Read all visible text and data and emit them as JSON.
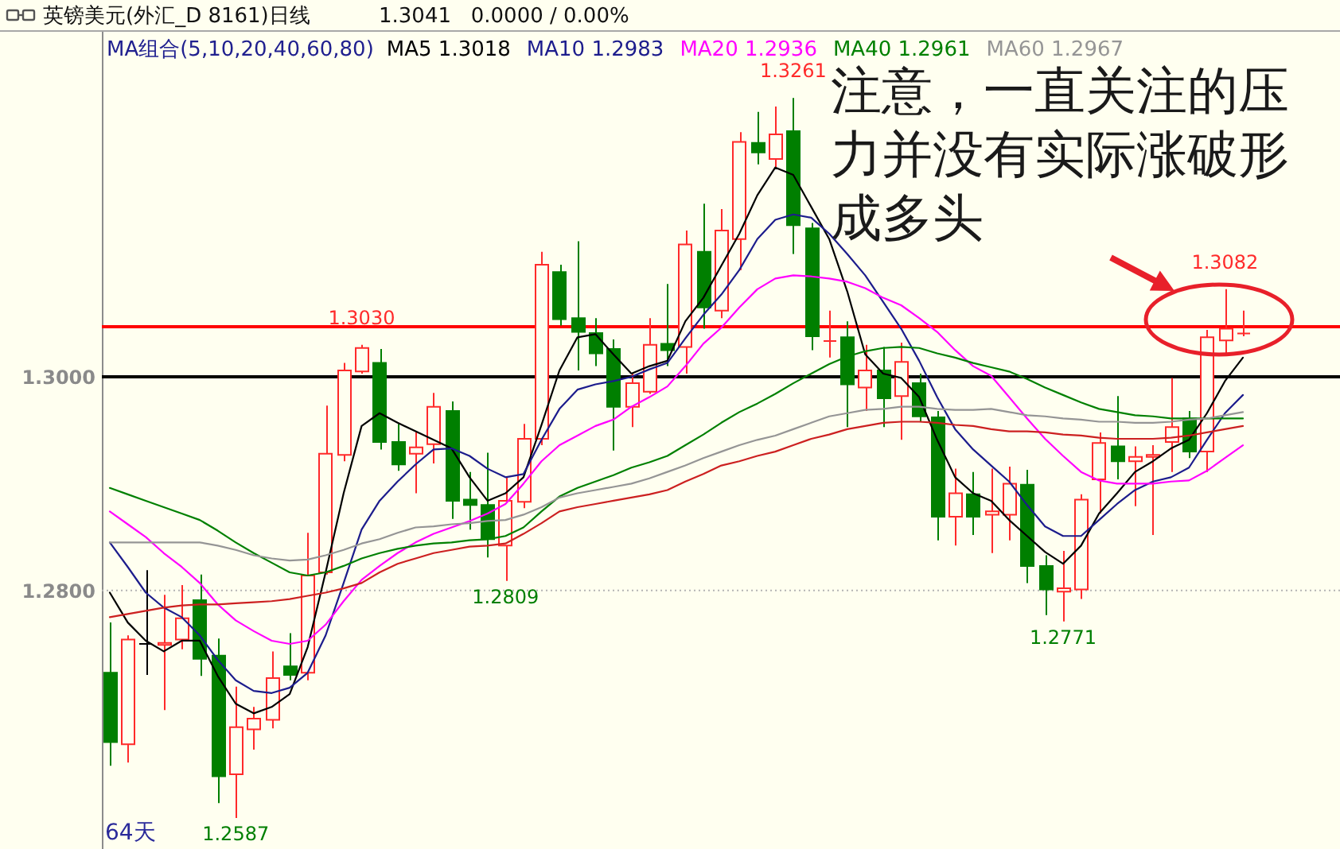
{
  "chart_data": {
    "type": "candlestick",
    "title": "英镑美元(外汇_D 8161)日线",
    "subtitle": "1.3041   0.0000 / 0.00%",
    "legend_title": "MA组合(5,10,20,40,60,80)",
    "categories": [
      null,
      null,
      null,
      null,
      null,
      null,
      null,
      null,
      null,
      null,
      null,
      null,
      null,
      null,
      null,
      null,
      null,
      null,
      null,
      null,
      null,
      null,
      null,
      null,
      null,
      null,
      null,
      null,
      null,
      null,
      null,
      null,
      null,
      null,
      null,
      null,
      null,
      null,
      null,
      null,
      null,
      null,
      null,
      null,
      null,
      null,
      null,
      null,
      null,
      null,
      null,
      null,
      null,
      null,
      null,
      null,
      null,
      null,
      null,
      null,
      null,
      null,
      null,
      null
    ],
    "ohlc": [
      [
        1.2723,
        1.277,
        1.2636,
        1.2658
      ],
      [
        1.2656,
        1.2758,
        1.2639,
        1.2754
      ],
      [
        1.275,
        1.2819,
        1.2721,
        1.275
      ],
      [
        1.2749,
        1.2796,
        1.2688,
        1.2751
      ],
      [
        1.2754,
        1.2805,
        1.2745,
        1.2774
      ],
      [
        1.2791,
        1.2815,
        1.272,
        1.2736
      ],
      [
        1.2739,
        1.2755,
        1.2601,
        1.2626
      ],
      [
        1.2628,
        1.271,
        1.2587,
        1.2672
      ],
      [
        1.267,
        1.2691,
        1.2651,
        1.268
      ],
      [
        1.2679,
        1.2743,
        1.2671,
        1.2718
      ],
      [
        1.2729,
        1.276,
        1.2716,
        1.2721
      ],
      [
        1.2723,
        1.2854,
        1.2716,
        1.2814
      ],
      [
        1.2817,
        1.2973,
        1.2815,
        1.2928
      ],
      [
        1.2927,
        1.3013,
        1.2921,
        1.3006
      ],
      [
        1.3005,
        1.303,
        1.3003,
        1.3027
      ],
      [
        1.3013,
        1.3026,
        1.2932,
        1.2939
      ],
      [
        1.2939,
        1.2956,
        1.2912,
        1.2918
      ],
      [
        1.2928,
        1.2948,
        1.2891,
        1.2934
      ],
      [
        1.2937,
        1.2985,
        1.2919,
        1.2972
      ],
      [
        1.2968,
        1.2977,
        1.2867,
        1.2884
      ],
      [
        1.2885,
        1.2911,
        1.2857,
        1.288
      ],
      [
        1.288,
        1.2929,
        1.2831,
        1.2848
      ],
      [
        1.2842,
        1.2906,
        1.2809,
        1.2884
      ],
      [
        1.2883,
        1.2956,
        1.2877,
        1.2942
      ],
      [
        1.2942,
        1.3117,
        1.2936,
        1.3105
      ],
      [
        1.3098,
        1.3105,
        1.3048,
        1.3054
      ],
      [
        1.3055,
        1.3127,
        1.3006,
        1.3042
      ],
      [
        1.3041,
        1.3055,
        1.301,
        1.3022
      ],
      [
        1.3026,
        1.3035,
        1.2931,
        1.2972
      ],
      [
        1.2972,
        1.3003,
        1.2953,
        1.2994
      ],
      [
        1.2986,
        1.3055,
        1.2984,
        1.303
      ],
      [
        1.3031,
        1.3087,
        1.301,
        1.3025
      ],
      [
        1.3028,
        1.3137,
        1.3003,
        1.3124
      ],
      [
        1.3117,
        1.3162,
        1.3045,
        1.3065
      ],
      [
        1.3062,
        1.3157,
        1.3055,
        1.3137
      ],
      [
        1.3129,
        1.3229,
        1.31,
        1.322
      ],
      [
        1.3219,
        1.3248,
        1.3199,
        1.321
      ],
      [
        1.3204,
        1.3253,
        1.3196,
        1.3227
      ],
      [
        1.323,
        1.3261,
        1.3115,
        1.3142
      ],
      [
        1.3139,
        1.3144,
        1.3025,
        1.3038
      ],
      [
        1.3033,
        1.3062,
        1.3018,
        1.3034
      ],
      [
        1.3037,
        1.3052,
        1.2953,
        1.2993
      ],
      [
        1.299,
        1.303,
        1.2968,
        1.3006
      ],
      [
        1.3006,
        1.3028,
        1.2953,
        1.298
      ],
      [
        1.2982,
        1.3032,
        1.2941,
        1.3014
      ],
      [
        1.2994,
        1.3003,
        1.2958,
        1.2963
      ],
      [
        1.2962,
        1.2968,
        1.2847,
        1.2869
      ],
      [
        1.2869,
        1.2914,
        1.2842,
        1.2891
      ],
      [
        1.289,
        1.2911,
        1.2852,
        1.2869
      ],
      [
        1.2871,
        1.2914,
        1.2835,
        1.2874
      ],
      [
        1.2871,
        1.2916,
        1.2847,
        1.29
      ],
      [
        1.2899,
        1.2913,
        1.2807,
        1.2823
      ],
      [
        1.2823,
        1.2833,
        1.2777,
        1.2801
      ],
      [
        1.2799,
        1.2837,
        1.2771,
        1.2802
      ],
      [
        1.2801,
        1.289,
        1.2792,
        1.2885
      ],
      [
        1.2904,
        1.2948,
        1.2872,
        1.2938
      ],
      [
        1.2935,
        1.2982,
        1.2904,
        1.2921
      ],
      [
        1.2921,
        1.2935,
        1.2879,
        1.2925
      ],
      [
        1.2925,
        1.2936,
        1.2852,
        1.2927
      ],
      [
        1.2939,
        1.2999,
        1.2911,
        1.2953
      ],
      [
        1.2961,
        1.2968,
        1.2924,
        1.293
      ],
      [
        1.293,
        1.3044,
        1.2911,
        1.3037
      ],
      [
        1.3034,
        1.3082,
        1.302,
        1.3045
      ],
      [
        1.304,
        1.3062,
        1.3038,
        1.3041
      ]
    ],
    "colors": [
      "#007f00",
      "#ff2a2a",
      "#000000",
      "#ff2a2a",
      "#ff2a2a",
      "#007f00",
      "#007f00",
      "#ff2a2a",
      "#ff2a2a",
      "#ff2a2a",
      "#007f00",
      "#ff2a2a",
      "#ff2a2a",
      "#ff2a2a",
      "#ff2a2a",
      "#007f00",
      "#007f00",
      "#ff2a2a",
      "#ff2a2a",
      "#007f00",
      "#007f00",
      "#007f00",
      "#ff2a2a",
      "#ff2a2a",
      "#ff2a2a",
      "#007f00",
      "#007f00",
      "#007f00",
      "#007f00",
      "#ff2a2a",
      "#ff2a2a",
      "#007f00",
      "#ff2a2a",
      "#007f00",
      "#ff2a2a",
      "#ff2a2a",
      "#007f00",
      "#ff2a2a",
      "#007f00",
      "#007f00",
      "#ff2a2a",
      "#007f00",
      "#ff2a2a",
      "#007f00",
      "#ff2a2a",
      "#007f00",
      "#007f00",
      "#ff2a2a",
      "#007f00",
      "#ff2a2a",
      "#ff2a2a",
      "#007f00",
      "#007f00",
      "#ff2a2a",
      "#ff2a2a",
      "#ff2a2a",
      "#007f00",
      "#ff2a2a",
      "#ff2a2a",
      "#ff2a2a",
      "#007f00",
      "#ff2a2a",
      "#ff2a2a",
      "#ff2a2a"
    ],
    "series": [
      {
        "name": "MA5 1.3018",
        "type": "line",
        "color": "#000000",
        "values": [
          1.2798,
          1.277,
          1.2753,
          1.2743,
          1.2753,
          1.2753,
          1.272,
          1.2694,
          1.2685,
          1.2691,
          1.2703,
          1.2747,
          1.2817,
          1.2891,
          1.2954,
          1.2966,
          1.2957,
          1.2949,
          1.2941,
          1.2933,
          1.2906,
          1.2884,
          1.2891,
          1.2906,
          1.2955,
          1.3006,
          1.3037,
          1.304,
          1.3021,
          1.3003,
          1.301,
          1.3015,
          1.3052,
          1.3074,
          1.3104,
          1.3134,
          1.317,
          1.3196,
          1.3189,
          1.3159,
          1.3129,
          1.308,
          1.3021,
          1.3003,
          1.2999,
          1.2981,
          1.2941,
          1.2906,
          1.2891,
          1.2884,
          1.2866,
          1.2851,
          1.2836,
          1.2825,
          1.2842,
          1.2872,
          1.2891,
          1.2911,
          1.2921,
          1.2933,
          1.2941,
          1.2966,
          1.2996,
          1.3018
        ]
      },
      {
        "name": "MA10 1.2983",
        "type": "line",
        "color": "#1c1c8c",
        "values": [
          1.2845,
          1.2822,
          1.2798,
          1.2784,
          1.2775,
          1.2758,
          1.2735,
          1.2716,
          1.2706,
          1.2704,
          1.2709,
          1.2723,
          1.2758,
          1.2807,
          1.2857,
          1.2884,
          1.2902,
          1.2918,
          1.2932,
          1.2933,
          1.2926,
          1.2914,
          1.2906,
          1.2909,
          1.2941,
          1.297,
          1.2988,
          1.2993,
          1.2996,
          1.3,
          1.3007,
          1.3013,
          1.3036,
          1.3058,
          1.3077,
          1.31,
          1.3129,
          1.3147,
          1.3152,
          1.3149,
          1.3134,
          1.3115,
          1.3095,
          1.307,
          1.3045,
          1.3015,
          1.2981,
          1.2951,
          1.2932,
          1.2917,
          1.2902,
          1.288,
          1.286,
          1.2851,
          1.2851,
          1.2866,
          1.2881,
          1.2894,
          1.2902,
          1.2906,
          1.2915,
          1.2941,
          1.2966,
          1.2983
        ]
      },
      {
        "name": "MA20 1.2936",
        "type": "line",
        "color": "#ff00ff",
        "values": [
          1.2874,
          1.2862,
          1.285,
          1.2835,
          1.2822,
          1.2807,
          1.2787,
          1.2772,
          1.2762,
          1.2753,
          1.275,
          1.2753,
          1.2768,
          1.279,
          1.281,
          1.2823,
          1.2835,
          1.2845,
          1.2853,
          1.2859,
          1.2865,
          1.2872,
          1.2881,
          1.29,
          1.2921,
          1.2936,
          1.2945,
          1.2954,
          1.296,
          1.2972,
          1.2981,
          1.2991,
          1.301,
          1.3031,
          1.3046,
          1.3065,
          1.3082,
          1.3092,
          1.3095,
          1.3094,
          1.3092,
          1.3089,
          1.3083,
          1.3074,
          1.3067,
          1.3055,
          1.3042,
          1.3025,
          1.301,
          1.3001,
          1.2981,
          1.2961,
          1.2942,
          1.2926,
          1.2911,
          1.2903,
          1.29,
          1.29,
          1.29,
          1.2902,
          1.2903,
          1.2912,
          1.2924,
          1.2936
        ]
      },
      {
        "name": "MA40 1.2961",
        "type": "line",
        "color": "#008000",
        "values": [
          1.2896,
          1.289,
          1.2884,
          1.2878,
          1.2872,
          1.2866,
          1.2856,
          1.2845,
          1.2835,
          1.2826,
          1.2817,
          1.2814,
          1.2817,
          1.2823,
          1.283,
          1.2835,
          1.2839,
          1.2842,
          1.2844,
          1.2845,
          1.2847,
          1.2848,
          1.2851,
          1.2859,
          1.2874,
          1.2888,
          1.2896,
          1.2902,
          1.2908,
          1.2915,
          1.292,
          1.2926,
          1.2936,
          1.2946,
          1.2957,
          1.2967,
          1.2975,
          1.2984,
          1.2994,
          1.3003,
          1.3012,
          1.3019,
          1.3024,
          1.3027,
          1.3028,
          1.3027,
          1.3022,
          1.3018,
          1.3013,
          1.3009,
          1.3005,
          1.2998,
          1.299,
          1.2983,
          1.2976,
          1.297,
          1.2967,
          1.2964,
          1.2963,
          1.2961,
          1.2961,
          1.2961,
          1.2961,
          1.2961
        ]
      },
      {
        "name": "MA60 1.2967",
        "type": "line",
        "color": "#959595",
        "values": [
          1.2845,
          1.2845,
          1.2845,
          1.2845,
          1.2845,
          1.2845,
          1.2842,
          1.2838,
          1.2833,
          1.283,
          1.2828,
          1.2829,
          1.2833,
          1.2838,
          1.2844,
          1.2848,
          1.2854,
          1.2859,
          1.286,
          1.2862,
          1.2863,
          1.2865,
          1.2866,
          1.2871,
          1.2878,
          1.2887,
          1.2891,
          1.2894,
          1.2897,
          1.29,
          1.2905,
          1.2911,
          1.2917,
          1.2924,
          1.293,
          1.2936,
          1.2941,
          1.2945,
          1.2951,
          1.2957,
          1.2963,
          1.2966,
          1.2969,
          1.297,
          1.2972,
          1.2972,
          1.297,
          1.2969,
          1.2969,
          1.297,
          1.2967,
          1.2964,
          1.2963,
          1.2961,
          1.296,
          1.2958,
          1.2958,
          1.2957,
          1.2957,
          1.2958,
          1.296,
          1.2961,
          1.2964,
          1.2967
        ]
      },
      {
        "type": "line",
        "color": "#cc2020",
        "values": [
          1.2775,
          1.2778,
          1.2781,
          1.2784,
          1.2786,
          1.2787,
          1.2787,
          1.2788,
          1.2789,
          1.279,
          1.2792,
          1.2795,
          1.2798,
          1.2802,
          1.2807,
          1.2817,
          1.2825,
          1.283,
          1.2835,
          1.2838,
          1.2841,
          1.2842,
          1.2844,
          1.2853,
          1.2863,
          1.2874,
          1.2878,
          1.2881,
          1.2884,
          1.2887,
          1.289,
          1.2894,
          1.2902,
          1.2909,
          1.2917,
          1.2921,
          1.2926,
          1.293,
          1.2936,
          1.2942,
          1.2946,
          1.2951,
          1.2954,
          1.2957,
          1.2958,
          1.2958,
          1.2957,
          1.2955,
          1.2954,
          1.2951,
          1.2949,
          1.2949,
          1.2948,
          1.2946,
          1.2945,
          1.2943,
          1.2942,
          1.2942,
          1.2942,
          1.2943,
          1.2945,
          1.2948,
          1.2951,
          1.2954
        ]
      }
    ],
    "ylim": [
      1.2558,
      1.3323
    ],
    "yticks": [
      {
        "value": 1.28,
        "label": "1.2800"
      },
      {
        "value": 1.3,
        "label": "1.3000"
      }
    ],
    "tick_labels": "y",
    "legend": "top",
    "ref_lines": [
      {
        "axis": "y",
        "value": 1.28,
        "color": "#b4b4b4",
        "line_style": "dotted"
      },
      {
        "axis": "y",
        "value": 1.3,
        "color": "#000000"
      },
      {
        "axis": "y",
        "value": 1.3047,
        "color": "#ff0000"
      }
    ],
    "annotations": [
      {
        "text": "1.3030",
        "y": 1.303
      },
      {
        "text": "1.3261",
        "y": 1.3261
      },
      {
        "text": "1.3082",
        "y": 1.3082
      },
      {
        "text": "1.2809",
        "y": 1.2809
      },
      {
        "text": "1.2771",
        "y": 1.2771
      },
      {
        "text": "1.2587",
        "y": 1.2587
      },
      "64天",
      "注意，一直关注的压力并没有实际涨破形成多头"
    ]
  }
}
